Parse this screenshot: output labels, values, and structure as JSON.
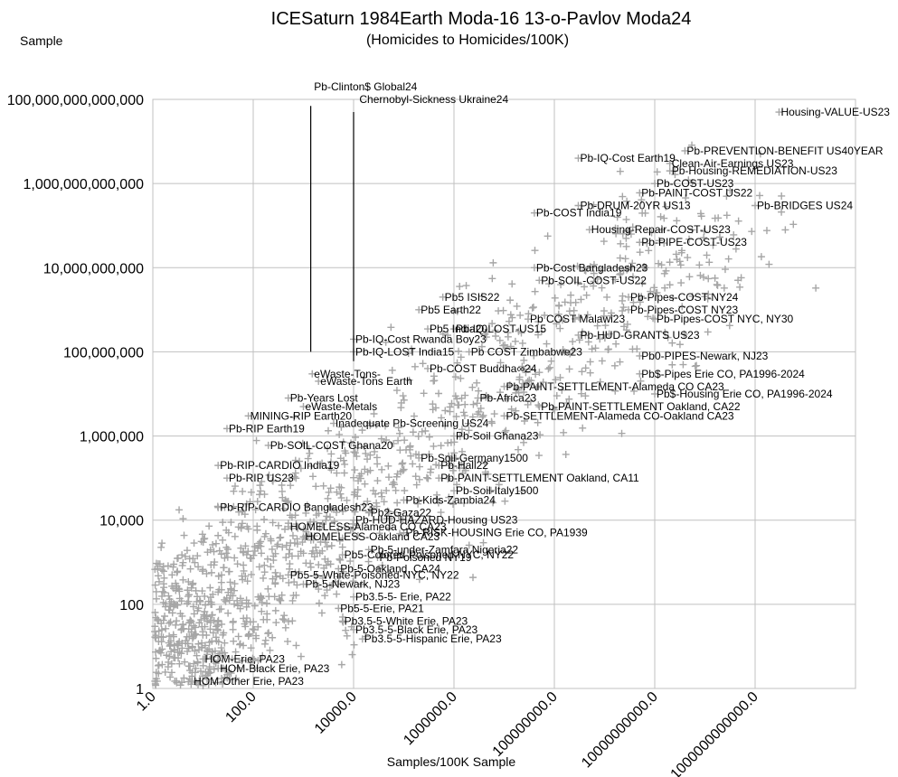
{
  "chart_data": {
    "type": "scatter",
    "title": "ICESaturn 1984Earth Moda-16 13-o-Pavlov Moda24",
    "subtitle": "(Homicides to Homicides/100K)",
    "ylabel": "Sample",
    "xlabel": "Samples/100K Sample",
    "x_scale": "log",
    "y_scale": "log",
    "xlim": [
      1,
      100000000000000
    ],
    "ylim": [
      1,
      100000000000000
    ],
    "grid": true,
    "marker": "plus",
    "marker_color": "#a6a6a6",
    "y_ticks": [
      {
        "value": 1,
        "label": "1"
      },
      {
        "value": 100,
        "label": "100"
      },
      {
        "value": 10000,
        "label": "10,000"
      },
      {
        "value": 1000000,
        "label": "1,000,000"
      },
      {
        "value": 100000000,
        "label": "100,000,000"
      },
      {
        "value": 10000000000,
        "label": "10,000,000,000"
      },
      {
        "value": 1000000000000,
        "label": "1,000,000,000,000"
      },
      {
        "value": 100000000000000,
        "label": "100,000,000,000,000"
      }
    ],
    "x_ticks": [
      {
        "value": 1,
        "label": "1.0"
      },
      {
        "value": 100,
        "label": "100.0"
      },
      {
        "value": 10000,
        "label": "10000.0"
      },
      {
        "value": 1000000,
        "label": "1000000.0"
      },
      {
        "value": 100000000,
        "label": "100000000.0"
      },
      {
        "value": 10000000000,
        "label": "10000000000.0"
      },
      {
        "value": 1000000000000,
        "label": "1000000000000.0"
      }
    ],
    "vertical_lines": [
      {
        "x": 1400,
        "y_from": 100000000,
        "y_to": 70000000000000
      },
      {
        "x": 10000,
        "y_from": 60000000,
        "y_to": 50000000000000
      }
    ],
    "annotations": [
      {
        "text": "Pb-Clinton$ Global24",
        "x": 1500,
        "y": 200000000000000
      },
      {
        "text": "Chernobyl-Sickness Ukraine24",
        "x": 12000,
        "y": 100000000000000
      },
      {
        "text": "Housing-VALUE-US23",
        "x": 3000000000000,
        "y": 50000000000000
      },
      {
        "text": "Pb-PREVENTION-BENEFIT US40YEAR",
        "x": 40000000000,
        "y": 6000000000000
      },
      {
        "text": "Clean-Air-Earnings US23",
        "x": 20000000000,
        "y": 3000000000000
      },
      {
        "text": "Pb-IQ-Cost Earth19",
        "x": 300000000,
        "y": 4000000000000
      },
      {
        "text": "Pb-Housing-REMEDIATION-US23",
        "x": 20000000000,
        "y": 2000000000000
      },
      {
        "text": "Pb-COST-US23",
        "x": 10000000000,
        "y": 1000000000000
      },
      {
        "text": "Pb-PAINT-COST US22",
        "x": 5000000000,
        "y": 600000000000
      },
      {
        "text": "Pb-DRUM-20YR US13",
        "x": 300000000,
        "y": 300000000000
      },
      {
        "text": "Pb-BRIDGES US24",
        "x": 1000000000000,
        "y": 300000000000
      },
      {
        "text": "Pb-COST India19",
        "x": 40000000,
        "y": 200000000000
      },
      {
        "text": "Housing-Repair-COST-US23",
        "x": 500000000,
        "y": 80000000000
      },
      {
        "text": "Pb-PIPE-COST-US23",
        "x": 5000000000,
        "y": 40000000000
      },
      {
        "text": "Pb-Cost Bangladesh23",
        "x": 40000000,
        "y": 10000000000
      },
      {
        "text": "Pb-SOIL-COST-US22",
        "x": 50000000,
        "y": 5000000000
      },
      {
        "text": "Pb5 ISIS22",
        "x": 600000,
        "y": 2000000000
      },
      {
        "text": "Pb-Pipes-COST-NY24",
        "x": 3000000000,
        "y": 2000000000
      },
      {
        "text": "Pb5 Earth22",
        "x": 200000,
        "y": 1000000000
      },
      {
        "text": "Pb-Pipes-COST NY23",
        "x": 3000000000,
        "y": 1000000000
      },
      {
        "text": "Pb COST Malawi23",
        "x": 30000000,
        "y": 600000000
      },
      {
        "text": "Pb-Pipes-COST NYC, NY30",
        "x": 10000000000,
        "y": 600000000
      },
      {
        "text": "Pb5 India20",
        "x": 300000,
        "y": 350000000
      },
      {
        "text": "Pb-IQ-LOST-US15",
        "x": 1000000,
        "y": 350000000
      },
      {
        "text": "Pb-HUD-GRANTS US23",
        "x": 300000000,
        "y": 250000000
      },
      {
        "text": "Pb-IQ-Cost Rwanda Boy23",
        "x": 10000,
        "y": 200000000
      },
      {
        "text": "Pb-IQ-LOST India15",
        "x": 10000,
        "y": 100000000
      },
      {
        "text": "Pb COST Zimbabwe23",
        "x": 2000000,
        "y": 100000000
      },
      {
        "text": "Pb0-PIPES-Newark, NJ23",
        "x": 5000000000,
        "y": 80000000
      },
      {
        "text": "Pb-COST Buddha∞24",
        "x": 300000,
        "y": 40000000
      },
      {
        "text": "eWaste-Tons-",
        "x": 1500,
        "y": 30000000
      },
      {
        "text": "Pb$-Pipes Erie CO, PA1996-2024",
        "x": 5000000000,
        "y": 30000000
      },
      {
        "text": "eWaste-Tons Earth",
        "x": 2000,
        "y": 20000000
      },
      {
        "text": "Pb-PAINT-SETTLEMENT-Alameda CO CA23",
        "x": 10000000,
        "y": 15000000
      },
      {
        "text": "Pb$-Housing Erie CO, PA1996-2024",
        "x": 10000000000,
        "y": 10000000
      },
      {
        "text": "Pb-Years Lost",
        "x": 500,
        "y": 8000000
      },
      {
        "text": "Pb-Africa23",
        "x": 3000000,
        "y": 8000000
      },
      {
        "text": "eWaste-Metals",
        "x": 1000,
        "y": 5000000
      },
      {
        "text": "Pb-PAINT-SETTLEMENT Oakland, CA22",
        "x": 50000000,
        "y": 5000000
      },
      {
        "text": "MINING-RIP Earth20",
        "x": 80,
        "y": 3000000
      },
      {
        "text": "Pb-SETTLEMENT-Alameda CO-Oakland CA23",
        "x": 10000000,
        "y": 3000000
      },
      {
        "text": "Inadequate Pb-Screening US24",
        "x": 4000,
        "y": 2000000
      },
      {
        "text": "Pb-RIP Earth19",
        "x": 30,
        "y": 1500000
      },
      {
        "text": "Pb-Soil Ghana23",
        "x": 1000000,
        "y": 1000000
      },
      {
        "text": "Pb-SOIL-COST Ghana20",
        "x": 200,
        "y": 600000
      },
      {
        "text": "Pb-Soil-Germany1500",
        "x": 200000,
        "y": 300000
      },
      {
        "text": "Pb-RIP-CARDIO India19",
        "x": 20,
        "y": 200000
      },
      {
        "text": "Pb-Hall22",
        "x": 500000,
        "y": 200000
      },
      {
        "text": "Pb-RIP US23",
        "x": 30,
        "y": 100000
      },
      {
        "text": "Pb-PAINT-SETTLEMENT Oakland, CA11",
        "x": 500000,
        "y": 100000
      },
      {
        "text": "Pb-Soil-Italy1500",
        "x": 1000000,
        "y": 50000
      },
      {
        "text": "Pb-Kids-Zambia24",
        "x": 100000,
        "y": 30000
      },
      {
        "text": "Pb-RIP-CARDIO Bangladesh23",
        "x": 20,
        "y": 20000
      },
      {
        "text": "Pb2-Gaza22",
        "x": 20000,
        "y": 15000
      },
      {
        "text": "Pb-HUD-HAZARD-Housing US23",
        "x": 10000,
        "y": 10000
      },
      {
        "text": "Pb-RISK-HOUSING Erie CO, PA1939",
        "x": 100000,
        "y": 5000
      },
      {
        "text": "Pb-5-under-Zamfara Nigeria22",
        "x": 20000,
        "y": 2000
      },
      {
        "text": "Pb-Poisoned NY19",
        "x": 30000,
        "y": 1300
      },
      {
        "text": "HOMELESS-Alameda CO CA23",
        "x": 500,
        "y": 7000
      },
      {
        "text": "HOMELESS-Oakland CA23",
        "x": 1000,
        "y": 4000
      },
      {
        "text": "Pb5-Colored-Poisoned-NYC, NY22",
        "x": 6000,
        "y": 1500
      },
      {
        "text": "Pb-5-Oakland, CA24",
        "x": 5000,
        "y": 700
      },
      {
        "text": "Pb5-5-White-Poisoned-NYC, NY22",
        "x": 500,
        "y": 500
      },
      {
        "text": "Pb-5-Newark, NJ23",
        "x": 1000,
        "y": 300
      },
      {
        "text": "Pb3.5-5- Erie, PA22",
        "x": 10000,
        "y": 150
      },
      {
        "text": "Pb5-5-Erie, PA21",
        "x": 5000,
        "y": 80
      },
      {
        "text": "Pb3.5-5-White Erie, PA23",
        "x": 6000,
        "y": 40
      },
      {
        "text": "Pb3.5-5-Black Erie, PA23",
        "x": 10000,
        "y": 25
      },
      {
        "text": "Pb3.5-5-Hispanic Erie, PA23",
        "x": 15000,
        "y": 15
      },
      {
        "text": "HOM-Erie, PA23",
        "x": 10,
        "y": 5
      },
      {
        "text": "HOM-Black Erie, PA23",
        "x": 20,
        "y": 3
      },
      {
        "text": "HOM-Other Erie, PA23",
        "x": 6,
        "y": 1.5
      }
    ]
  }
}
